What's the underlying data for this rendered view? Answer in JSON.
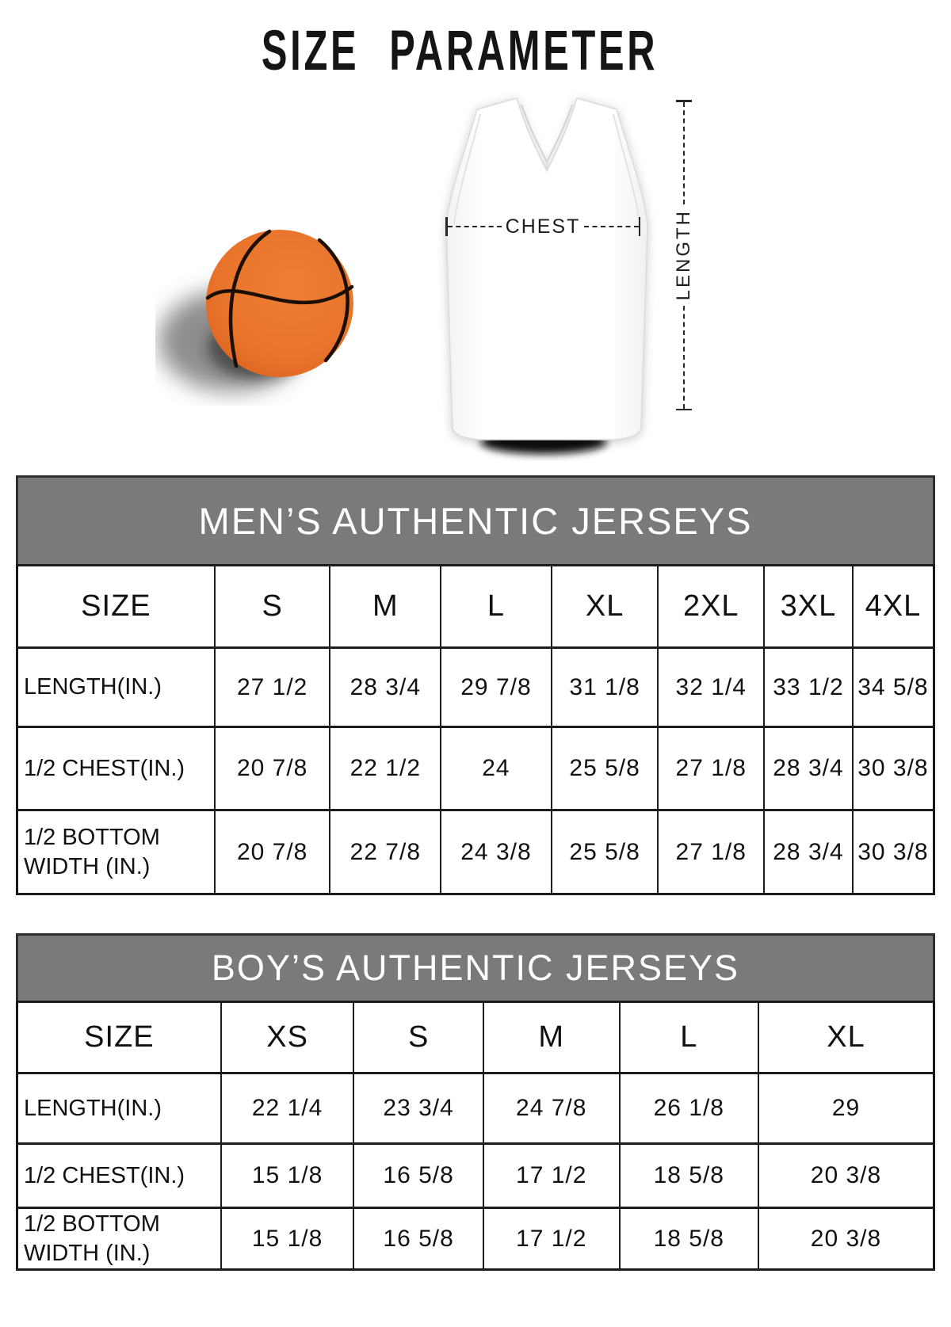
{
  "page": {
    "title": "SIZE PARAMETER"
  },
  "diagram": {
    "chest_label": "CHEST",
    "length_label": "LENGTH",
    "basketball_color": "#e8722a",
    "basketball_seam_color": "#1c0e00",
    "jersey_color": "#fdfdfd"
  },
  "tables": [
    {
      "banner": "MEN’S AUTHENTIC JERSEYS",
      "banner_color": "#7a7a7a",
      "columns": [
        "SIZE",
        "S",
        "M",
        "L",
        "XL",
        "2XL",
        "3XL",
        "4XL"
      ],
      "rows": [
        {
          "label": "LENGTH(IN.)",
          "values": [
            "27 1/2",
            "28 3/4",
            "29 7/8",
            "31 1/8",
            "32 1/4",
            "33 1/2",
            "34 5/8"
          ]
        },
        {
          "label": "1/2 CHEST(IN.)",
          "values": [
            "20 7/8",
            "22 1/2",
            "24",
            "25 5/8",
            "27 1/8",
            "28 3/4",
            "30 3/8"
          ]
        },
        {
          "label": "1/2 BOTTOM WIDTH (IN.)",
          "values": [
            "20 7/8",
            "22 7/8",
            "24 3/8",
            "25 5/8",
            "27 1/8",
            "28 3/4",
            "30 3/8"
          ]
        }
      ]
    },
    {
      "banner": "BOY’S AUTHENTIC JERSEYS",
      "banner_color": "#7a7a7a",
      "columns": [
        "SIZE",
        "XS",
        "S",
        "M",
        "L",
        "XL"
      ],
      "rows": [
        {
          "label": "LENGTH(IN.)",
          "values": [
            "22 1/4",
            "23 3/4",
            "24 7/8",
            "26 1/8",
            "29"
          ]
        },
        {
          "label": "1/2 CHEST(IN.)",
          "values": [
            "15 1/8",
            "16 5/8",
            "17 1/2",
            "18 5/8",
            "20 3/8"
          ]
        },
        {
          "label": "1/2 BOTTOM WIDTH (IN.)",
          "values": [
            "15 1/8",
            "16 5/8",
            "17 1/2",
            "18 5/8",
            "20 3/8"
          ]
        }
      ]
    }
  ]
}
